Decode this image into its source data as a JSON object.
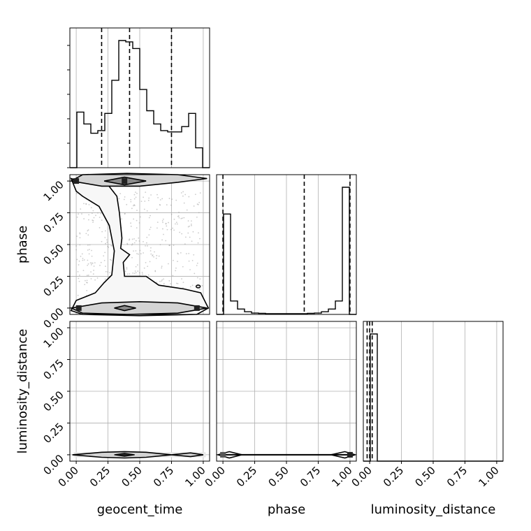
{
  "chart_data": {
    "type": "corner",
    "parameters": [
      "geocent_time",
      "phase",
      "luminosity_distance"
    ],
    "axis_labels": {
      "geocent_time": "geocent_time",
      "phase": "phase",
      "luminosity_distance": "luminosity_distance"
    },
    "tick_values": [
      0.0,
      0.25,
      0.5,
      0.75,
      1.0
    ],
    "tick_labels": [
      "0.00",
      "0.25",
      "0.50",
      "0.75",
      "1.00"
    ],
    "grid": true,
    "range": [
      -0.05,
      1.05
    ],
    "line_color": "#000000",
    "fill_colors": [
      "#f7f7f7",
      "#d4d4d4",
      "#8a8a8a",
      "#222222"
    ],
    "histograms": {
      "geocent_time": {
        "bin_edges": [
          -0.05,
          0.005,
          0.06,
          0.115,
          0.17,
          0.225,
          0.28,
          0.335,
          0.39,
          0.445,
          0.5,
          0.555,
          0.61,
          0.665,
          0.72,
          0.775,
          0.83,
          0.885,
          0.94,
          0.995,
          1.05
        ],
        "counts": [
          0,
          0.42,
          0.33,
          0.26,
          0.28,
          0.41,
          0.66,
          0.96,
          0.95,
          0.9,
          0.59,
          0.43,
          0.33,
          0.28,
          0.27,
          0.27,
          0.31,
          0.41,
          0.15,
          0
        ],
        "quantiles": [
          0.2,
          0.42,
          0.75
        ]
      },
      "phase": {
        "bin_edges": [
          -0.05,
          0.005,
          0.06,
          0.115,
          0.17,
          0.225,
          0.28,
          0.335,
          0.39,
          0.445,
          0.5,
          0.555,
          0.61,
          0.665,
          0.72,
          0.775,
          0.83,
          0.885,
          0.94,
          0.995,
          1.05
        ],
        "counts": [
          0,
          0.75,
          0.1,
          0.04,
          0.02,
          0.01,
          0.008,
          0.006,
          0.005,
          0.005,
          0.005,
          0.005,
          0.006,
          0.008,
          0.01,
          0.02,
          0.04,
          0.1,
          0.95,
          0
        ],
        "quantiles": [
          0.0,
          0.64,
          1.0
        ]
      },
      "luminosity_distance": {
        "bin_edges": [
          -0.05,
          0.005,
          0.06,
          0.115,
          0.17,
          0.225,
          0.28,
          0.335,
          0.39,
          0.445,
          0.5,
          0.555,
          0.61,
          0.665,
          0.72,
          0.775,
          0.83,
          0.885,
          0.94,
          0.995,
          1.05
        ],
        "counts": [
          0,
          1.0,
          0,
          0,
          0,
          0,
          0,
          0,
          0,
          0,
          0,
          0,
          0,
          0,
          0,
          0,
          0,
          0,
          0,
          0
        ],
        "quantiles": [
          -0.02,
          0.0,
          0.02
        ]
      }
    },
    "contours": {
      "phase_vs_geocent_time": {
        "outer": [
          [
            -0.04,
            1.02
          ],
          [
            0.1,
            0.98
          ],
          [
            0.25,
            0.97
          ],
          [
            0.32,
            0.88
          ],
          [
            0.34,
            0.75
          ],
          [
            0.36,
            0.55
          ],
          [
            0.35,
            0.47
          ],
          [
            0.42,
            0.42
          ],
          [
            0.37,
            0.36
          ],
          [
            0.38,
            0.25
          ],
          [
            0.55,
            0.25
          ],
          [
            0.65,
            0.18
          ],
          [
            0.85,
            0.15
          ],
          [
            0.98,
            0.12
          ],
          [
            1.04,
            0.0
          ],
          [
            0.95,
            -0.05
          ],
          [
            0.5,
            -0.06
          ],
          [
            0.05,
            -0.05
          ],
          [
            -0.04,
            -0.02
          ],
          [
            0.0,
            0.06
          ],
          [
            0.15,
            0.12
          ],
          [
            0.22,
            0.2
          ],
          [
            0.28,
            0.26
          ],
          [
            0.3,
            0.45
          ],
          [
            0.26,
            0.65
          ],
          [
            0.18,
            0.8
          ],
          [
            0.05,
            0.88
          ],
          [
            0.0,
            0.92
          ]
        ],
        "upper_band": [
          [
            -0.04,
            1.0
          ],
          [
            0.2,
            0.96
          ],
          [
            0.5,
            0.96
          ],
          [
            0.8,
            0.99
          ],
          [
            1.03,
            1.02
          ],
          [
            0.8,
            1.05
          ],
          [
            0.4,
            1.06
          ],
          [
            0.05,
            1.05
          ]
        ],
        "upper_core": [
          [
            0.22,
            1.0
          ],
          [
            0.38,
            0.97
          ],
          [
            0.55,
            1.0
          ],
          [
            0.38,
            1.03
          ]
        ],
        "lower_band": [
          [
            -0.04,
            0.0
          ],
          [
            0.2,
            0.04
          ],
          [
            0.5,
            0.05
          ],
          [
            0.8,
            0.04
          ],
          [
            1.03,
            0.0
          ],
          [
            0.8,
            -0.04
          ],
          [
            0.4,
            -0.05
          ],
          [
            0.05,
            -0.04
          ]
        ],
        "lower_core": [
          [
            0.3,
            0.0
          ],
          [
            0.38,
            -0.02
          ],
          [
            0.47,
            0.0
          ],
          [
            0.38,
            0.02
          ]
        ],
        "dense_points": [
          [
            0.38,
            1.0
          ],
          [
            0.0,
            1.0
          ],
          [
            0.95,
            0.0
          ],
          [
            0.02,
            0.0
          ]
        ]
      },
      "luminosity_distance_vs_geocent_time": {
        "band": [
          [
            -0.03,
            0.0
          ],
          [
            0.2,
            0.02
          ],
          [
            0.38,
            0.025
          ],
          [
            0.55,
            0.02
          ],
          [
            0.75,
            0.0
          ],
          [
            0.9,
            0.015
          ],
          [
            1.0,
            0.0
          ],
          [
            0.9,
            -0.015
          ],
          [
            0.75,
            0.0
          ],
          [
            0.55,
            -0.02
          ],
          [
            0.38,
            -0.025
          ],
          [
            0.2,
            -0.02
          ]
        ],
        "core": [
          [
            0.3,
            0.0
          ],
          [
            0.38,
            -0.012
          ],
          [
            0.46,
            0.0
          ],
          [
            0.38,
            0.012
          ]
        ]
      },
      "luminosity_distance_vs_phase": {
        "band": [
          [
            -0.04,
            0.0
          ],
          [
            0.05,
            0.025
          ],
          [
            0.15,
            0.0
          ],
          [
            0.85,
            0.0
          ],
          [
            0.96,
            0.025
          ],
          [
            1.04,
            0.0
          ],
          [
            0.96,
            -0.025
          ],
          [
            0.85,
            0.0
          ],
          [
            0.15,
            0.0
          ],
          [
            0.05,
            -0.025
          ]
        ],
        "core": [
          [
            0.0,
            0.0
          ],
          [
            1.0,
            0.0
          ]
        ]
      }
    }
  }
}
